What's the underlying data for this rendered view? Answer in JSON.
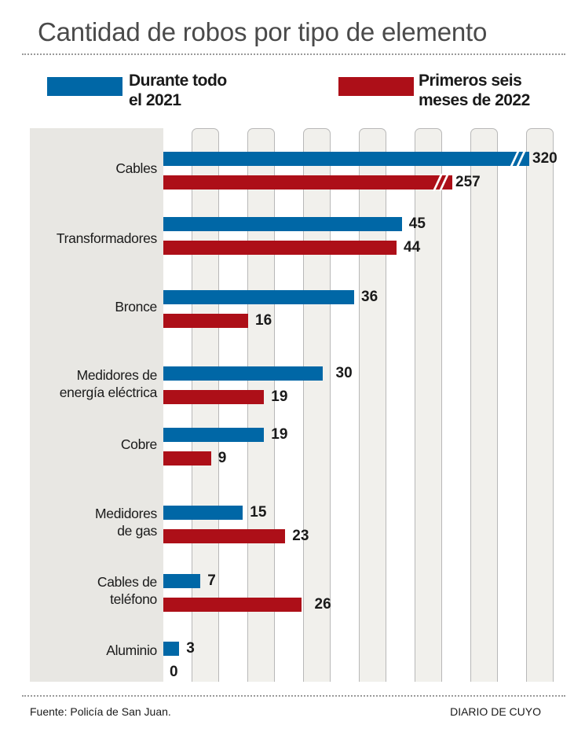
{
  "chart_data": {
    "type": "bar",
    "orientation": "horizontal",
    "title": "Cantidad de robos por tipo de elemento",
    "categories": [
      "Cables",
      "Transformadores",
      "Bronce",
      "Medidores de\nenergía eléctrica",
      "Cobre",
      "Medidores\nde gas",
      "Cables de\nteléfono",
      "Aluminio"
    ],
    "series": [
      {
        "name": "Durante todo el 2021",
        "color": "#0067a6",
        "values": [
          320,
          45,
          36,
          30,
          19,
          15,
          7,
          3
        ]
      },
      {
        "name": "Primeros seis meses de 2022",
        "color": "#ad0f18",
        "values": [
          257,
          44,
          16,
          19,
          9,
          23,
          26,
          0
        ]
      }
    ],
    "value_labels": {
      "series_0": [
        "320",
        "45",
        "36",
        "30",
        "19",
        "15",
        "7",
        "3"
      ],
      "series_1": [
        "257",
        "44",
        "16",
        "19",
        "9",
        "23",
        "26",
        "0"
      ]
    },
    "axis_breaks": [
      "Cables"
    ],
    "xlabel": "",
    "ylabel": "",
    "grid": false,
    "legend": "top"
  },
  "legend": {
    "items": [
      {
        "line1": "Durante todo",
        "line2": "el 2021",
        "color": "#0067a6"
      },
      {
        "line1": "Primeros seis",
        "line2": "meses de 2022",
        "color": "#ad0f18"
      }
    ]
  },
  "footer": {
    "source": "Fuente: Policía de San Juan.",
    "brand": "DIARIO DE CUYO"
  }
}
